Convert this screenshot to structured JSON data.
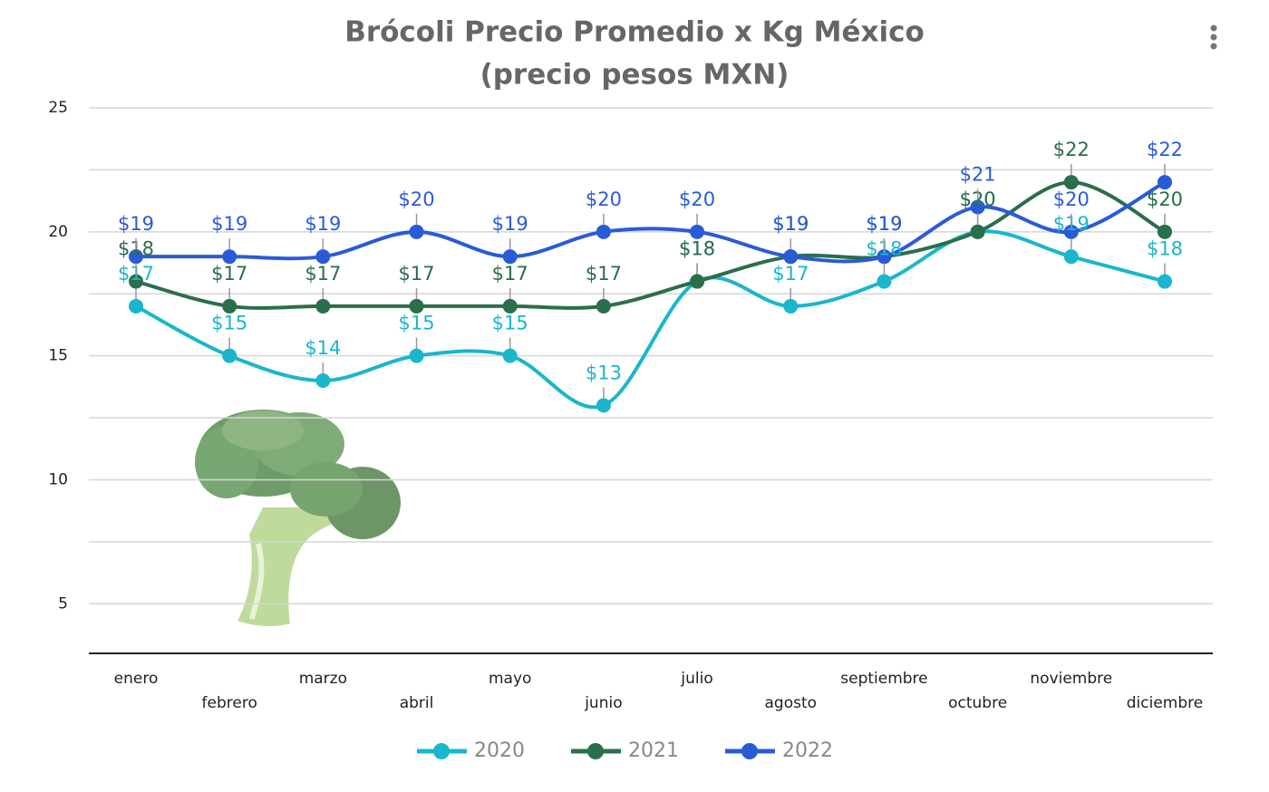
{
  "chart_data": {
    "type": "line",
    "title": "Brócoli Precio Promedio x Kg México",
    "subtitle": "(precio pesos MXN)",
    "categories": [
      "enero",
      "febrero",
      "marzo",
      "abril",
      "mayo",
      "junio",
      "julio",
      "agosto",
      "septiembre",
      "octubre",
      "noviembre",
      "diciembre"
    ],
    "series": [
      {
        "name": "2020",
        "color": "#1ab6cc",
        "values": [
          17,
          15,
          14,
          15,
          15,
          13,
          18,
          17,
          18,
          20,
          19,
          18
        ],
        "value_labels": [
          "$17",
          "$15",
          "$14",
          "$15",
          "$15",
          "$13",
          "$18",
          "$17",
          "$18",
          "$20",
          "$19",
          "$18"
        ]
      },
      {
        "name": "2021",
        "color": "#2b6e4b",
        "values": [
          18,
          17,
          17,
          17,
          17,
          17,
          18,
          19,
          19,
          20,
          22,
          20
        ],
        "value_labels": [
          "$18",
          "$17",
          "$17",
          "$17",
          "$17",
          "$17",
          "$18",
          "$19",
          "$19",
          "$20",
          "$22",
          "$20"
        ]
      },
      {
        "name": "2022",
        "color": "#2a5bd7",
        "values": [
          19,
          19,
          19,
          20,
          19,
          20,
          20,
          19,
          19,
          21,
          20,
          22
        ],
        "value_labels": [
          "$19",
          "$19",
          "$19",
          "$20",
          "$19",
          "$20",
          "$20",
          "$19",
          "$19",
          "$21",
          "$20",
          "$22"
        ]
      }
    ],
    "ylim": [
      3,
      25
    ],
    "yticks": [
      5,
      10,
      15,
      20,
      25
    ],
    "minor_yticks": [
      7.5,
      12.5,
      17.5,
      22.5
    ],
    "grid": true,
    "smooth": true,
    "legend": "bottom"
  }
}
